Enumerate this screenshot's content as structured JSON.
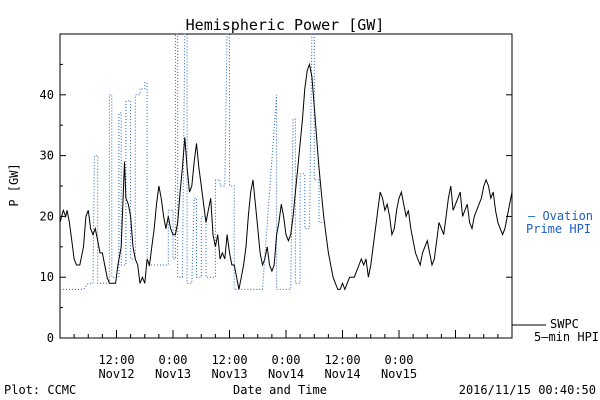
{
  "chart_data": {
    "type": "line",
    "title": "Hemispheric Power [GW]",
    "xlabel": "Date and Time",
    "ylabel": "P [GW]",
    "ylim": [
      0,
      50
    ],
    "xlim_hours": [
      0,
      96
    ],
    "yticks": [
      0,
      10,
      20,
      30,
      40
    ],
    "xtick_labels": [
      {
        "x": 12,
        "time": "12:00",
        "date": "Nov12"
      },
      {
        "x": 24,
        "time": "0:00",
        "date": "Nov13"
      },
      {
        "x": 36,
        "time": "12:00",
        "date": "Nov13"
      },
      {
        "x": 48,
        "time": "0:00",
        "date": "Nov14"
      },
      {
        "x": 60,
        "time": "12:00",
        "date": "Nov14"
      },
      {
        "x": 72,
        "time": "0:00",
        "date": "Nov15"
      }
    ],
    "series": [
      {
        "name": "Ovation Prime HPI",
        "color": "#1f5fbf",
        "style": "dotted",
        "points": [
          [
            0,
            8
          ],
          [
            5,
            8
          ],
          [
            6,
            9
          ],
          [
            7,
            9
          ],
          [
            7.3,
            30
          ],
          [
            8,
            30
          ],
          [
            8,
            9
          ],
          [
            10.5,
            9
          ],
          [
            10.5,
            40
          ],
          [
            11,
            40
          ],
          [
            11,
            10
          ],
          [
            12.5,
            10
          ],
          [
            12.5,
            37
          ],
          [
            13,
            37
          ],
          [
            13,
            12
          ],
          [
            14,
            12
          ],
          [
            14,
            39
          ],
          [
            15,
            39
          ],
          [
            15,
            13
          ],
          [
            16,
            13
          ],
          [
            16,
            40
          ],
          [
            17,
            40
          ],
          [
            17,
            41
          ],
          [
            18,
            41
          ],
          [
            18,
            42
          ],
          [
            18.5,
            42
          ],
          [
            18.5,
            12
          ],
          [
            23,
            12
          ],
          [
            23,
            21
          ],
          [
            24,
            21
          ],
          [
            24,
            13
          ],
          [
            24.5,
            13
          ],
          [
            24.5,
            50
          ],
          [
            25,
            50
          ],
          [
            25,
            10
          ],
          [
            26,
            10
          ],
          [
            26.5,
            50
          ],
          [
            27,
            50
          ],
          [
            27,
            9
          ],
          [
            28,
            9
          ],
          [
            28.5,
            23
          ],
          [
            29,
            23
          ],
          [
            29,
            10
          ],
          [
            30,
            10
          ],
          [
            30,
            20
          ],
          [
            31,
            20
          ],
          [
            31,
            10
          ],
          [
            33,
            10
          ],
          [
            33,
            26
          ],
          [
            34,
            26
          ],
          [
            34,
            25
          ],
          [
            35,
            25
          ],
          [
            35.5,
            50
          ],
          [
            36,
            50
          ],
          [
            36,
            25
          ],
          [
            37,
            25
          ],
          [
            37,
            8
          ],
          [
            43,
            8
          ],
          [
            46,
            40
          ],
          [
            46,
            8
          ],
          [
            49,
            8
          ],
          [
            49.5,
            36
          ],
          [
            50,
            36
          ],
          [
            50,
            9
          ],
          [
            51,
            9
          ],
          [
            51,
            27
          ],
          [
            52,
            27
          ],
          [
            52,
            18
          ],
          [
            53,
            18
          ],
          [
            53.5,
            50
          ],
          [
            54,
            50
          ],
          [
            54,
            26
          ],
          [
            55,
            26
          ],
          [
            55,
            19
          ],
          [
            56,
            19
          ]
        ],
        "x_start_hour": 40
      },
      {
        "name": "SWPC 5-min HPI",
        "color": "#000000",
        "style": "solid",
        "points": [
          [
            0,
            19
          ],
          [
            0.7,
            21
          ],
          [
            1.2,
            20
          ],
          [
            1.5,
            21
          ],
          [
            2,
            19
          ],
          [
            2.5,
            16
          ],
          [
            3,
            13
          ],
          [
            3.5,
            12
          ],
          [
            4.2,
            12
          ],
          [
            5,
            15
          ],
          [
            5.5,
            20
          ],
          [
            6,
            21
          ],
          [
            6.5,
            18
          ],
          [
            7,
            17
          ],
          [
            7.5,
            18
          ],
          [
            8,
            16
          ],
          [
            8.5,
            14
          ],
          [
            9,
            14
          ],
          [
            9.5,
            12
          ],
          [
            10,
            10
          ],
          [
            10.5,
            9
          ],
          [
            11,
            9
          ],
          [
            11.8,
            9
          ],
          [
            12.3,
            12
          ],
          [
            13,
            15
          ],
          [
            13.7,
            29
          ],
          [
            14,
            23
          ],
          [
            14.5,
            22
          ],
          [
            15,
            20
          ],
          [
            15.5,
            15
          ],
          [
            16,
            13
          ],
          [
            16.5,
            12
          ],
          [
            17,
            9
          ],
          [
            17.5,
            10
          ],
          [
            18,
            9
          ],
          [
            18.5,
            13
          ],
          [
            19,
            12
          ],
          [
            19.5,
            15
          ],
          [
            20,
            18
          ],
          [
            20.5,
            22
          ],
          [
            21,
            25
          ],
          [
            21.5,
            23
          ],
          [
            22,
            20
          ],
          [
            22.5,
            18
          ],
          [
            23,
            20
          ],
          [
            23.5,
            18
          ],
          [
            24,
            17
          ],
          [
            24.5,
            17
          ],
          [
            25,
            19
          ],
          [
            25.5,
            24
          ],
          [
            26,
            28
          ],
          [
            26.5,
            33
          ],
          [
            27,
            28
          ],
          [
            27.5,
            24
          ],
          [
            28,
            25
          ],
          [
            28.5,
            29
          ],
          [
            29,
            32
          ],
          [
            29.5,
            28
          ],
          [
            30,
            25
          ],
          [
            30.5,
            22
          ],
          [
            31,
            19
          ],
          [
            31.5,
            21
          ],
          [
            32,
            23
          ],
          [
            32.5,
            17
          ],
          [
            33,
            15
          ],
          [
            33.5,
            17
          ],
          [
            34,
            13
          ],
          [
            34.5,
            14
          ],
          [
            35,
            13
          ],
          [
            35.5,
            17
          ],
          [
            36,
            14
          ],
          [
            36.5,
            12
          ],
          [
            37,
            12
          ],
          [
            37.5,
            10
          ],
          [
            38,
            8
          ],
          [
            38.5,
            10
          ],
          [
            39,
            12
          ],
          [
            39.5,
            15
          ],
          [
            40,
            20
          ],
          [
            40.5,
            24
          ],
          [
            41,
            26
          ],
          [
            41.5,
            22
          ],
          [
            42,
            18
          ],
          [
            42.5,
            14
          ],
          [
            43,
            12
          ],
          [
            43.5,
            13
          ],
          [
            44,
            15
          ],
          [
            44.5,
            12
          ],
          [
            45,
            11
          ],
          [
            45.5,
            12
          ],
          [
            46,
            17
          ],
          [
            46.5,
            19
          ],
          [
            47,
            22
          ],
          [
            47.5,
            20
          ],
          [
            48,
            17
          ],
          [
            48.5,
            16
          ],
          [
            49,
            17
          ],
          [
            49.5,
            20
          ],
          [
            50,
            24
          ],
          [
            50.5,
            28
          ],
          [
            51,
            32
          ],
          [
            51.5,
            36
          ],
          [
            52,
            41
          ],
          [
            52.5,
            44
          ],
          [
            53,
            45
          ],
          [
            53.5,
            43
          ],
          [
            54,
            38
          ],
          [
            54.5,
            33
          ],
          [
            55,
            28
          ],
          [
            55.5,
            24
          ],
          [
            56,
            20
          ],
          [
            56.5,
            17
          ],
          [
            57,
            14
          ],
          [
            57.5,
            12
          ],
          [
            58,
            10
          ],
          [
            58.5,
            9
          ],
          [
            59,
            8
          ],
          [
            59.5,
            8
          ],
          [
            60,
            9
          ],
          [
            60.5,
            8
          ],
          [
            61,
            9
          ],
          [
            61.5,
            10
          ],
          [
            62,
            10
          ],
          [
            62.5,
            10
          ],
          [
            63,
            11
          ],
          [
            63.5,
            12
          ],
          [
            64,
            13
          ],
          [
            64.5,
            12
          ],
          [
            65,
            13
          ],
          [
            65.5,
            10
          ],
          [
            66,
            12
          ],
          [
            66.5,
            15
          ],
          [
            67,
            18
          ],
          [
            67.5,
            21
          ],
          [
            68,
            24
          ],
          [
            68.5,
            23
          ],
          [
            69,
            21
          ],
          [
            69.5,
            22
          ],
          [
            70,
            20
          ],
          [
            70.5,
            17
          ],
          [
            71,
            18
          ],
          [
            71.5,
            21
          ],
          [
            72,
            23
          ],
          [
            72.5,
            24
          ],
          [
            73,
            22
          ],
          [
            73.5,
            20
          ],
          [
            74,
            21
          ],
          [
            74.5,
            18
          ],
          [
            75,
            16
          ],
          [
            75.5,
            14
          ],
          [
            76,
            13
          ],
          [
            76.5,
            12
          ],
          [
            77,
            14
          ],
          [
            77.5,
            15
          ],
          [
            78,
            16
          ],
          [
            78.5,
            14
          ],
          [
            79,
            12
          ],
          [
            79.5,
            13
          ],
          [
            80,
            16
          ],
          [
            80.5,
            19
          ],
          [
            81,
            18
          ],
          [
            81.5,
            17
          ],
          [
            82,
            20
          ],
          [
            82.5,
            23
          ],
          [
            83,
            25
          ],
          [
            83.5,
            21
          ],
          [
            84,
            22
          ],
          [
            84.5,
            23
          ],
          [
            85,
            24
          ],
          [
            85.5,
            20
          ],
          [
            86,
            21
          ],
          [
            86.5,
            22
          ],
          [
            87,
            19
          ],
          [
            87.5,
            18
          ],
          [
            88,
            20
          ],
          [
            88.5,
            21
          ],
          [
            89,
            22
          ],
          [
            89.5,
            23
          ],
          [
            90,
            25
          ],
          [
            90.5,
            26
          ],
          [
            91,
            25
          ],
          [
            91.5,
            23
          ],
          [
            92,
            24
          ],
          [
            92.5,
            21
          ],
          [
            93,
            19
          ],
          [
            93.5,
            18
          ],
          [
            94,
            17
          ],
          [
            94.5,
            18
          ],
          [
            95,
            20
          ],
          [
            95.5,
            22
          ],
          [
            96,
            24
          ]
        ]
      }
    ]
  },
  "legend": {
    "ovation_line1": "– Ovation",
    "ovation_line2": "Prime HPI",
    "swpc_line1": "SWPC",
    "swpc_line2": "5–min HPI"
  },
  "footer": {
    "left": "Plot: CCMC",
    "center": "Date and Time",
    "right": "2016/11/15 00:40:50"
  }
}
